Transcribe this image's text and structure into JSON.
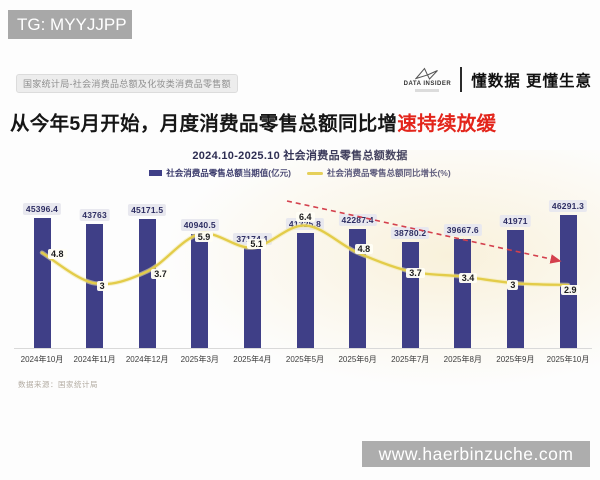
{
  "badge": {
    "text": "TG: MYYJJPP"
  },
  "header": {
    "tag": "国家统计局-社会消费品总额及化妆类消费品零售额",
    "brand_name": "DATA INSIDER",
    "brand_slogan": "懂数据 更懂生意"
  },
  "title": {
    "prefix": "从今年5月开始，月度消费品零售总额同比增",
    "highlight": "速持续放缓"
  },
  "chart_data": {
    "type": "bar",
    "title": "2024.10-2025.10 社会消费品零售总额数据",
    "categories": [
      "2024年10月",
      "2024年11月",
      "2024年12月",
      "2025年3月",
      "2025年4月",
      "2025年5月",
      "2025年6月",
      "2025年7月",
      "2025年8月",
      "2025年9月",
      "2025年10月"
    ],
    "series": [
      {
        "name": "社会消费品零售总额当期值(亿元)",
        "type": "bar",
        "values": [
          45396.4,
          43763,
          45171.5,
          40940.5,
          37174.1,
          41325.8,
          42287.4,
          38780.2,
          39667.6,
          41971,
          46291.3
        ]
      },
      {
        "name": "社会消费品零售总额同比增长(%)",
        "type": "line",
        "values": [
          4.8,
          3,
          3.7,
          5.9,
          5.1,
          6.4,
          4.8,
          3.7,
          3.4,
          3,
          2.9
        ]
      }
    ],
    "legend_position": "top",
    "colors": {
      "bar": "#3f3f87",
      "line": "#e3cc49",
      "trend_arrow": "#d4404d"
    },
    "annotations": {
      "trend_arrow": "red dashed downward arrow from 2025年5月 peak (6.4) to 2025年10月 (2.9)"
    }
  },
  "source": "数据来源：国家统计局",
  "watermark": {
    "text": "www.haerbinzuche.com"
  }
}
